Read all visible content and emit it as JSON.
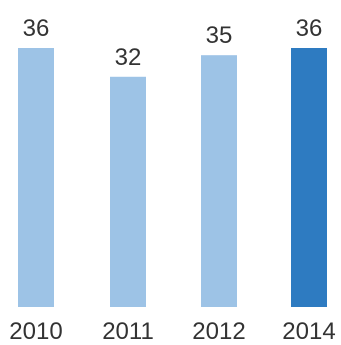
{
  "chart_data": {
    "type": "bar",
    "categories": [
      "2010",
      "2011",
      "2012",
      "2014"
    ],
    "values": [
      36,
      32,
      35,
      36
    ],
    "title": "",
    "xlabel": "",
    "ylabel": "",
    "ylim": [
      0,
      36
    ],
    "grid": false,
    "legend": "none",
    "value_labels_shown": true,
    "colors": {
      "default_bar": "#9dc3e6",
      "highlight_bar": "#2e7bc1",
      "text": "#333333"
    },
    "highlight_index": 3
  }
}
